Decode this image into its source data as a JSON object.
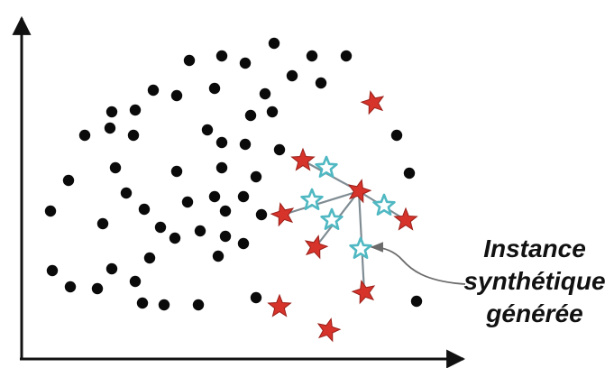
{
  "annotation": {
    "lines": [
      "Instance",
      "synthétique",
      "générée"
    ]
  },
  "colors": {
    "axis": "#111111",
    "majority_point": "#0a0a0a",
    "minority_star_fill": "#d6332b",
    "minority_star_stroke": "#9a1f18",
    "synthetic_star_fill": "#ffffff",
    "synthetic_star_stroke": "#4fb8c2",
    "link_line": "#7f8c93",
    "pointer_line": "#6b6b6b"
  },
  "legend_semantics": {
    "majority_class_marker": "black-dot",
    "minority_class_marker": "red-star",
    "synthetic_instance_marker": "cyan-outline-star"
  }
}
